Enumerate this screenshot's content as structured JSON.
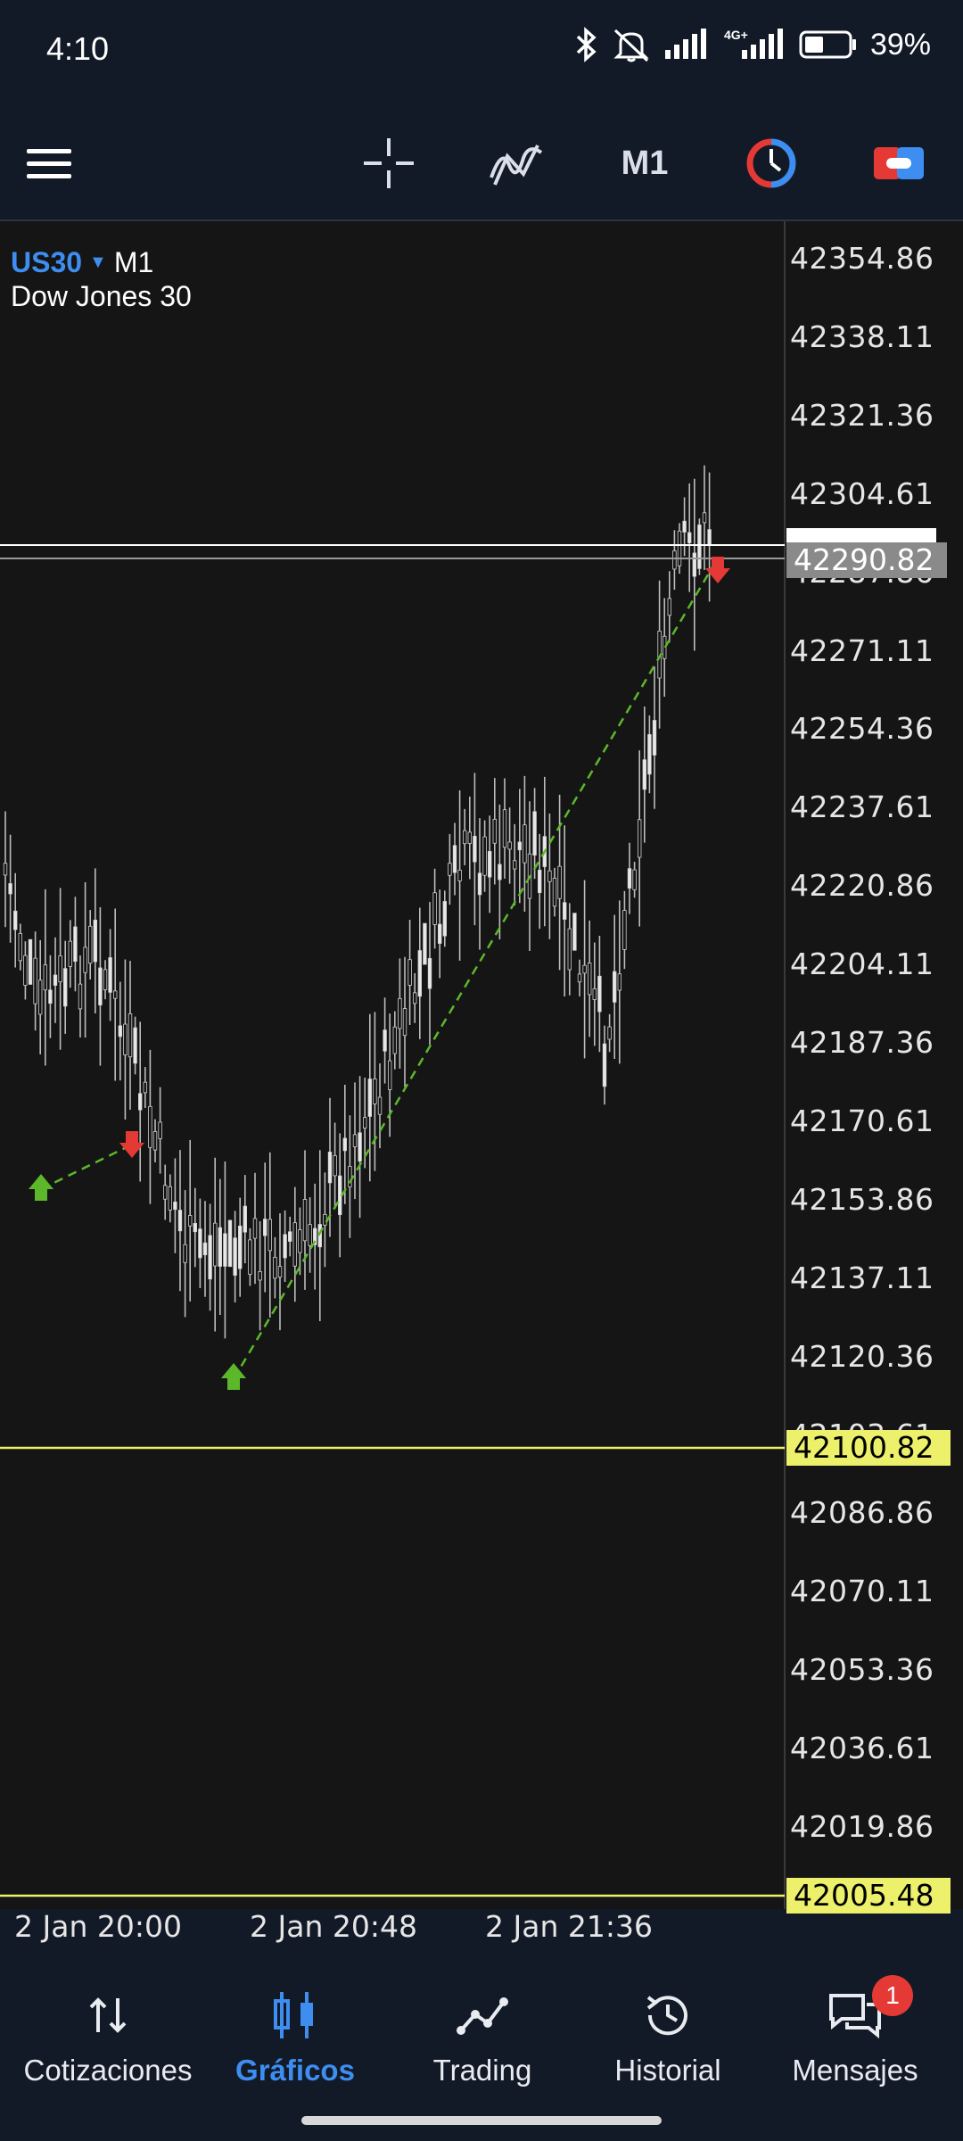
{
  "status_bar": {
    "time": "4:10",
    "battery": "39%",
    "network": "4G+"
  },
  "toolbar": {
    "menu_icon": "hamburger-icon",
    "crosshair_icon": "crosshair-icon",
    "indicators_icon": "indicators-icon",
    "timeframe": "M1",
    "one_click_icon": "one-click-trading-icon",
    "trade_icon": "trade-icon"
  },
  "chart": {
    "symbol": "US30",
    "timeframe": "M1",
    "description": "Dow Jones 30",
    "bid_price": "42290.82",
    "line_price_1": "42100.82",
    "line_price_2": "42005.48",
    "price_axis": [
      "42354.86",
      "42338.11",
      "42321.36",
      "42304.61",
      "42287.86",
      "42271.11",
      "42254.36",
      "42237.61",
      "42220.86",
      "42204.11",
      "42187.36",
      "42170.61",
      "42153.86",
      "42137.11",
      "42120.36",
      "42103.61",
      "42086.86",
      "42070.11",
      "42053.36",
      "42036.61",
      "42019.86"
    ],
    "time_axis": [
      "2 Jan 20:00",
      "2 Jan 20:48",
      "2 Jan 21:36"
    ],
    "colors": {
      "background": "#151515",
      "bull_arrow": "#5cb82a",
      "bear_arrow": "#e53935",
      "level_line": "#ecf06a",
      "trade_line": "#5cb82a"
    }
  },
  "bottom_nav": {
    "items": [
      {
        "label": "Cotizaciones",
        "icon": "quotes-icon"
      },
      {
        "label": "Gráficos",
        "icon": "charts-icon",
        "active": true
      },
      {
        "label": "Trading",
        "icon": "trading-icon"
      },
      {
        "label": "Historial",
        "icon": "history-icon"
      },
      {
        "label": "Mensajes",
        "icon": "messages-icon",
        "badge": "1"
      }
    ]
  }
}
